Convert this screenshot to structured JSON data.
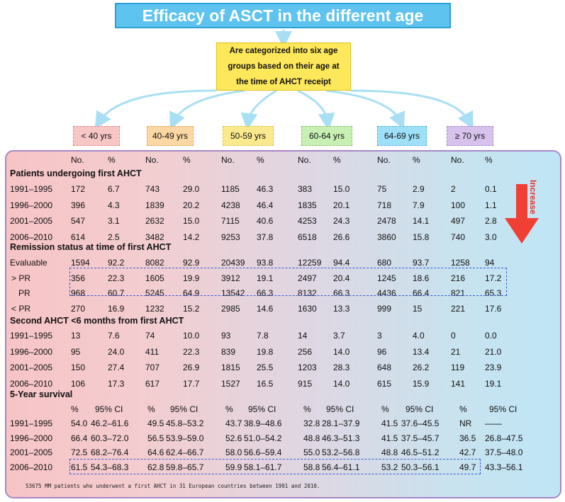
{
  "title": "Efficacy of ASCT in the different age groups",
  "subtitle": {
    "line1": "Are categorized into six age",
    "line2": "groups based on their age at",
    "line3": "the time of AHCT receipt"
  },
  "groups": [
    {
      "label": "< 40 yrs",
      "color": "#f9c6c6",
      "border": "#e38a8a"
    },
    {
      "label": "40-49 yrs",
      "color": "#fbd7a3",
      "border": "#e2a85b"
    },
    {
      "label": "50-59 yrs",
      "color": "#fbe98d",
      "border": "#d9c24a"
    },
    {
      "label": "60-64 yrs",
      "color": "#c8f0b4",
      "border": "#86c46a"
    },
    {
      "label": "64-69 yrs",
      "color": "#9ee0f7",
      "border": "#55b4d8"
    },
    {
      "label": "≥ 70 yrs",
      "color": "#d7c2ee",
      "border": "#a489c8"
    }
  ],
  "col_headers": {
    "no": "No.",
    "pct": "%"
  },
  "sections": {
    "first_ahct": {
      "title": "Patients undergoing first AHCT",
      "rows": [
        {
          "label": "1991–1995",
          "values": [
            "172",
            "6.7",
            "743",
            "29.0",
            "1185",
            "46.3",
            "383",
            "15.0",
            "75",
            "2.9",
            "2",
            "0.1"
          ]
        },
        {
          "label": "1996–2000",
          "values": [
            "396",
            "4.3",
            "1839",
            "20.2",
            "4238",
            "46.4",
            "1835",
            "20.1",
            "718",
            "7.9",
            "100",
            "1.1"
          ]
        },
        {
          "label": "2001–2005",
          "values": [
            "547",
            "3.1",
            "2632",
            "15.0",
            "7115",
            "40.6",
            "4253",
            "24.3",
            "2478",
            "14.1",
            "497",
            "2.8"
          ]
        },
        {
          "label": "2006–2010",
          "values": [
            "614",
            "2.5",
            "3482",
            "14.2",
            "9253",
            "37.8",
            "6518",
            "26.6",
            "3860",
            "15.8",
            "740",
            "3.0"
          ]
        }
      ]
    },
    "remission": {
      "title": "Remission status at time of first AHCT",
      "rows": [
        {
          "label": "Evaluable",
          "values": [
            "1594",
            "92.2",
            "8082",
            "92.9",
            "20439",
            "93.8",
            "12259",
            "94.4",
            "680",
            "93.7",
            "1258",
            "94"
          ]
        },
        {
          "label": "> PR",
          "values": [
            "356",
            "22.3",
            "1605",
            "19.9",
            "3912",
            "19.1",
            "2497",
            "20.4",
            "1245",
            "18.6",
            "216",
            "17.2"
          ]
        },
        {
          "label": "PR",
          "values": [
            "968",
            "60.7",
            "5245",
            "64.9",
            "13542",
            "66.3",
            "8132",
            "66.3",
            "4436",
            "66.4",
            "821",
            "65.3"
          ]
        },
        {
          "label": "< PR",
          "values": [
            "270",
            "16.9",
            "1232",
            "15.2",
            "2985",
            "14.6",
            "1630",
            "13.3",
            "999",
            "15",
            "221",
            "17.6"
          ]
        }
      ]
    },
    "second_ahct": {
      "title": "Second AHCT <6 months from first AHCT",
      "rows": [
        {
          "label": "1991–1995",
          "values": [
            "13",
            "7.6",
            "74",
            "10.0",
            "93",
            "7.8",
            "14",
            "3.7",
            "3",
            "4.0",
            "0",
            "0.0"
          ]
        },
        {
          "label": "1996–2000",
          "values": [
            "95",
            "24.0",
            "411",
            "22.3",
            "839",
            "19.8",
            "256",
            "14.0",
            "96",
            "13.4",
            "21",
            "21.0"
          ]
        },
        {
          "label": "2001–2005",
          "values": [
            "150",
            "27.4",
            "707",
            "26.9",
            "1815",
            "25.5",
            "1203",
            "28.3",
            "648",
            "26.2",
            "119",
            "23.9"
          ]
        },
        {
          "label": "2006–2010",
          "values": [
            "106",
            "17.3",
            "617",
            "17.7",
            "1527",
            "16.5",
            "915",
            "14.0",
            "615",
            "15.9",
            "141",
            "19.1"
          ]
        }
      ]
    },
    "survival": {
      "title": "5-Year survival",
      "headers": [
        "%",
        "95% CI",
        "%",
        "95% CI",
        "%",
        "95% CI",
        "%",
        "95% CI",
        "%",
        "95% CI",
        "%",
        "95% CI"
      ],
      "rows": [
        {
          "label": "1991–1995",
          "values": [
            "54.0",
            "46.2–61.6",
            "49.5",
            "45.8–53.2",
            "43.7",
            "38.9–48.6",
            "32.8",
            "28.1–37.9",
            "41.5",
            "37.6–45.5",
            "NR",
            "——"
          ]
        },
        {
          "label": "1996–2000",
          "values": [
            "66.4",
            "60.3–72.0",
            "56.5",
            "53.9–59.0",
            "52.6",
            "51.0–54.2",
            "48.8",
            "46.3–51.3",
            "41.5",
            "37.5–45.7",
            "36.5",
            "26.8–47.5"
          ]
        },
        {
          "label": "2001–2005",
          "values": [
            "72.5",
            "68.2–76.4",
            "64.6",
            "62.4–66.7",
            "58.0",
            "56.6–59.4",
            "55.0",
            "53.2–56.8",
            "48.8",
            "46.5–51.2",
            "42.7",
            "37.5–48.0"
          ]
        },
        {
          "label": "2006–2010",
          "values": [
            "61.5",
            "54.3–68.3",
            "62.8",
            "59.8–65.7",
            "59.9",
            "58.1–61.7",
            "58.8",
            "56.4–61.1",
            "53.2",
            "50.3–56.1",
            "49.7",
            "43.3–56.1"
          ]
        }
      ]
    }
  },
  "increase_label": "Increase",
  "footnote": "53675 MM patients who underwent a first AHCT in 31 European countries between 1991 and 2010.",
  "colors": {
    "title_bg": "#5ec3ee",
    "subtitle_bg": "#fde75a",
    "arrow": "#f04036",
    "dashed": "#3a5bd6",
    "panel_border": "#a687c4"
  }
}
